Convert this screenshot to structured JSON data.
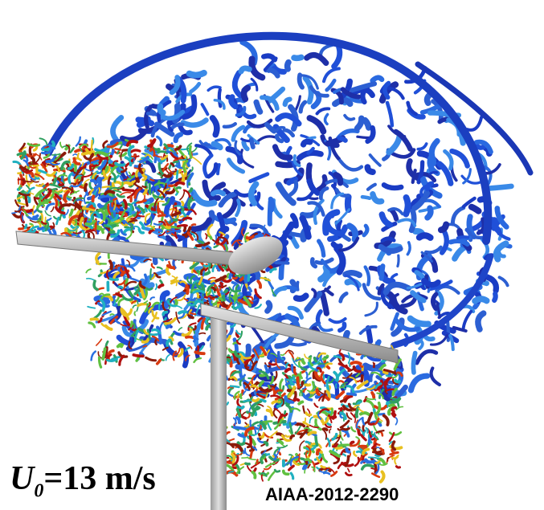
{
  "caption": {
    "symbol": "U",
    "subscript": "0",
    "rest": "=13 m/s"
  },
  "citation": "AIAA-2012-2290"
}
